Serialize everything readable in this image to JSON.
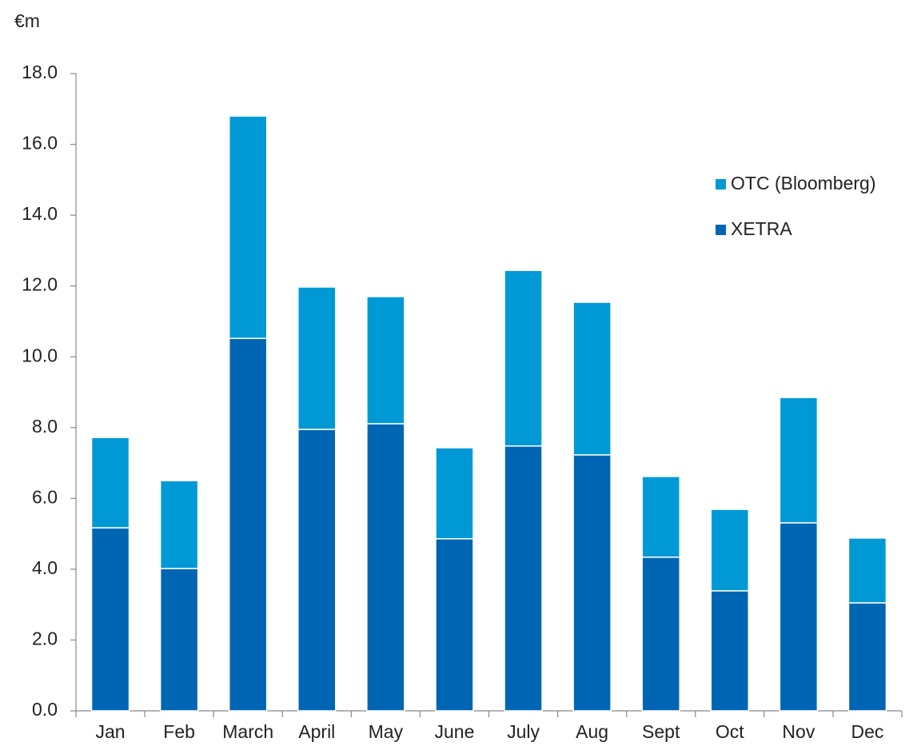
{
  "chart_data": {
    "type": "stacked_bar",
    "y_label": "€m",
    "categories": [
      "Jan",
      "Feb",
      "March",
      "April",
      "May",
      "June",
      "July",
      "Aug",
      "Sept",
      "Oct",
      "Nov",
      "Dec"
    ],
    "series": [
      {
        "name": "XETRA",
        "color": "#0066b3",
        "values": [
          5.17,
          4.02,
          10.52,
          7.95,
          8.11,
          4.86,
          7.48,
          7.23,
          4.34,
          3.39,
          5.31,
          3.05
        ]
      },
      {
        "name": "OTC (Bloomberg)",
        "color": "#0099d6",
        "values": [
          2.55,
          2.48,
          6.28,
          4.02,
          3.59,
          2.57,
          4.96,
          4.31,
          2.28,
          2.3,
          3.54,
          1.83
        ]
      }
    ],
    "ylim": [
      0,
      18
    ],
    "yticks": [
      {
        "value": 0,
        "label": "0.0"
      },
      {
        "value": 2,
        "label": "2.0"
      },
      {
        "value": 4,
        "label": "4.0"
      },
      {
        "value": 6,
        "label": "6.0"
      },
      {
        "value": 8,
        "label": "8.0"
      },
      {
        "value": 10,
        "label": "10.0"
      },
      {
        "value": 12,
        "label": "12.0"
      },
      {
        "value": 14,
        "label": "14.0"
      },
      {
        "value": 16,
        "label": "16.0"
      },
      {
        "value": 18,
        "label": "18.0"
      }
    ],
    "legend": "right"
  }
}
